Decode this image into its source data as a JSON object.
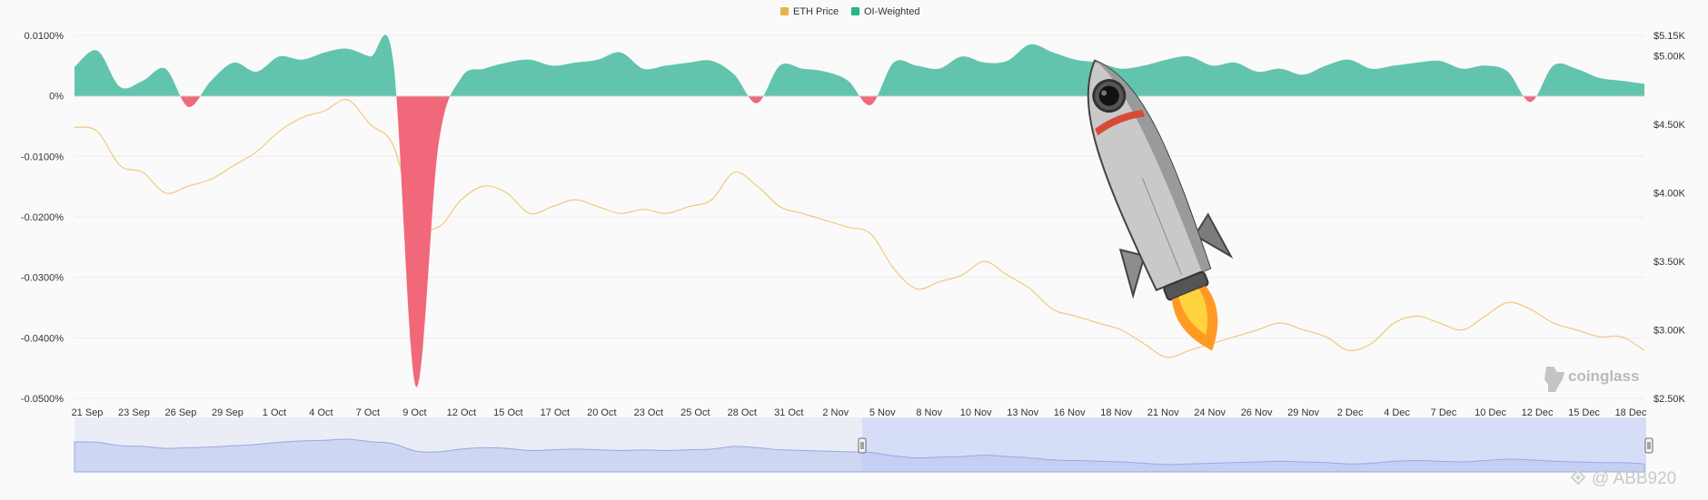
{
  "chart_data": {
    "type": "area",
    "legend": [
      {
        "name": "ETH Price",
        "color": "#e8b34a"
      },
      {
        "name": "OI-Weighted",
        "color": "#5fc4ab"
      }
    ],
    "legend_position": "top-center",
    "colors": {
      "positive": "#62c4ad",
      "negative": "#f1687a",
      "price": "#f1c87e",
      "navigator": "#a9b6e8"
    },
    "y_left": {
      "ticks": [
        "0.0100%",
        "0%",
        "-0.0100%",
        "-0.0200%",
        "-0.0300%",
        "-0.0400%",
        "-0.0500%"
      ],
      "tick_values": [
        0.01,
        0,
        -0.01,
        -0.02,
        -0.03,
        -0.04,
        -0.05
      ],
      "range": [
        -0.05,
        0.01
      ]
    },
    "y_right": {
      "ticks": [
        "$5.15K",
        "$5.00K",
        "$4.50K",
        "$4.00K",
        "$3.50K",
        "$3.00K",
        "$2.50K"
      ],
      "tick_values": [
        5150,
        5000,
        4500,
        4000,
        3500,
        3000,
        2500
      ],
      "range": [
        2500,
        5150
      ]
    },
    "x_ticks": [
      "21 Sep",
      "23 Sep",
      "26 Sep",
      "29 Sep",
      "1 Oct",
      "4 Oct",
      "7 Oct",
      "9 Oct",
      "12 Oct",
      "15 Oct",
      "17 Oct",
      "20 Oct",
      "23 Oct",
      "25 Oct",
      "28 Oct",
      "31 Oct",
      "2 Nov",
      "5 Nov",
      "8 Nov",
      "10 Nov",
      "13 Nov",
      "16 Nov",
      "18 Nov",
      "21 Nov",
      "24 Nov",
      "26 Nov",
      "29 Nov",
      "2 Dec",
      "4 Dec",
      "7 Dec",
      "10 Dec",
      "12 Dec",
      "15 Dec",
      "18 Dec"
    ],
    "series": [
      {
        "name": "OI-Weighted",
        "axis": "left",
        "values": [
          0.0048,
          0.0075,
          0.0015,
          0.0025,
          0.0045,
          -0.0018,
          0.0025,
          0.0055,
          0.004,
          0.0065,
          0.006,
          0.0072,
          0.0078,
          0.0065,
          0.006,
          -0.048,
          -0.008,
          0.003,
          0.0045,
          0.0055,
          0.006,
          0.005,
          0.0055,
          0.006,
          0.0072,
          0.0045,
          0.005,
          0.0055,
          0.0058,
          0.0035,
          -0.0012,
          0.005,
          0.0045,
          0.004,
          0.0025,
          -0.0015,
          0.0055,
          0.005,
          0.0045,
          0.0065,
          0.0055,
          0.0058,
          0.0085,
          0.0072,
          0.006,
          0.0055,
          0.0045,
          0.005,
          0.006,
          0.0065,
          0.005,
          0.0055,
          0.004,
          0.0045,
          0.0035,
          0.005,
          0.006,
          0.0045,
          0.005,
          0.0055,
          0.0058,
          0.0045,
          0.005,
          0.004,
          -0.001,
          0.005,
          0.0045,
          0.003,
          0.0025,
          0.002
        ]
      },
      {
        "name": "ETH Price",
        "axis": "right",
        "values": [
          4480,
          4450,
          4200,
          4150,
          4000,
          4050,
          4100,
          4200,
          4300,
          4450,
          4550,
          4600,
          4680,
          4500,
          4350,
          3800,
          3750,
          3950,
          4050,
          4000,
          3850,
          3900,
          3950,
          3900,
          3850,
          3880,
          3850,
          3900,
          3950,
          4150,
          4050,
          3900,
          3850,
          3800,
          3750,
          3700,
          3450,
          3300,
          3350,
          3400,
          3500,
          3400,
          3300,
          3150,
          3100,
          3050,
          3000,
          2900,
          2800,
          2850,
          2900,
          2950,
          3000,
          3050,
          3000,
          2950,
          2850,
          2900,
          3050,
          3100,
          3050,
          3000,
          3100,
          3200,
          3150,
          3050,
          3000,
          2950,
          2950,
          2850
        ]
      }
    ],
    "watermark": "coinglass",
    "credit": "@ ABB920"
  }
}
